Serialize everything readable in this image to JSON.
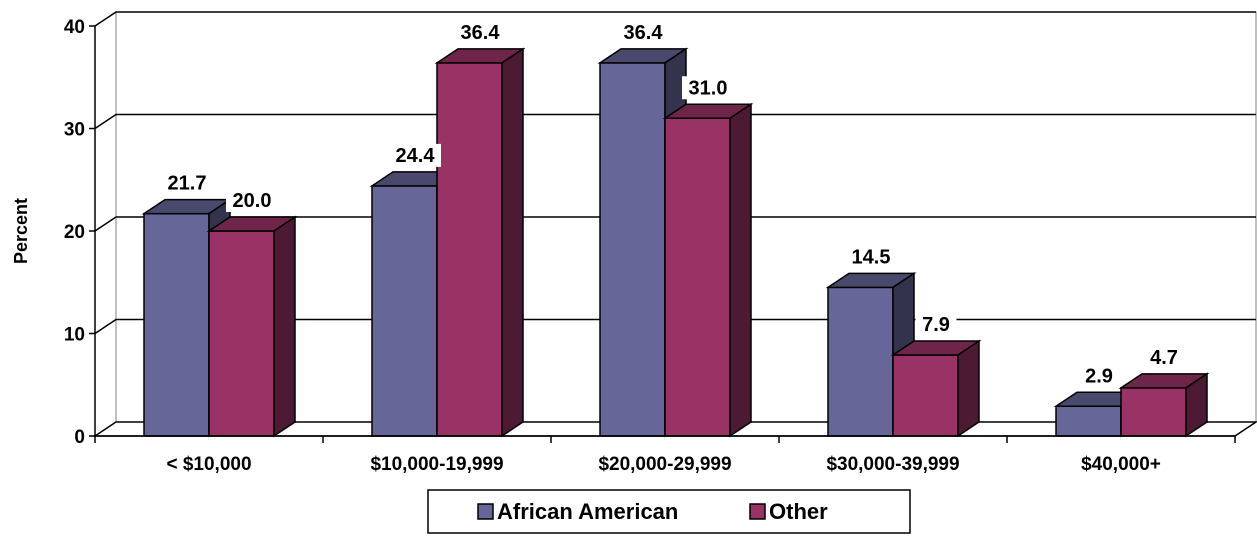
{
  "chart_data": {
    "type": "bar",
    "categories": [
      "< $10,000",
      "$10,000-19,999",
      "$20,000-29,999",
      "$30,000-39,999",
      "$40,000+"
    ],
    "series": [
      {
        "name": "African American",
        "values": [
          21.7,
          24.4,
          36.4,
          14.5,
          2.9
        ],
        "color": "#666699"
      },
      {
        "name": "Other",
        "values": [
          20.0,
          36.4,
          31.0,
          7.9,
          4.7
        ],
        "color": "#993366"
      }
    ],
    "data_labels": [
      [
        "21.7",
        "24.4",
        "36.4",
        "14.5",
        "2.9"
      ],
      [
        "20.0",
        "36.4",
        "31.0",
        "7.9",
        "4.7"
      ]
    ],
    "ylabel": "Percent",
    "ylim": [
      0,
      40
    ],
    "yticks": [
      "0",
      "10",
      "20",
      "30",
      "40"
    ],
    "grid": true,
    "three_d": true,
    "legend_position": "bottom-center"
  }
}
